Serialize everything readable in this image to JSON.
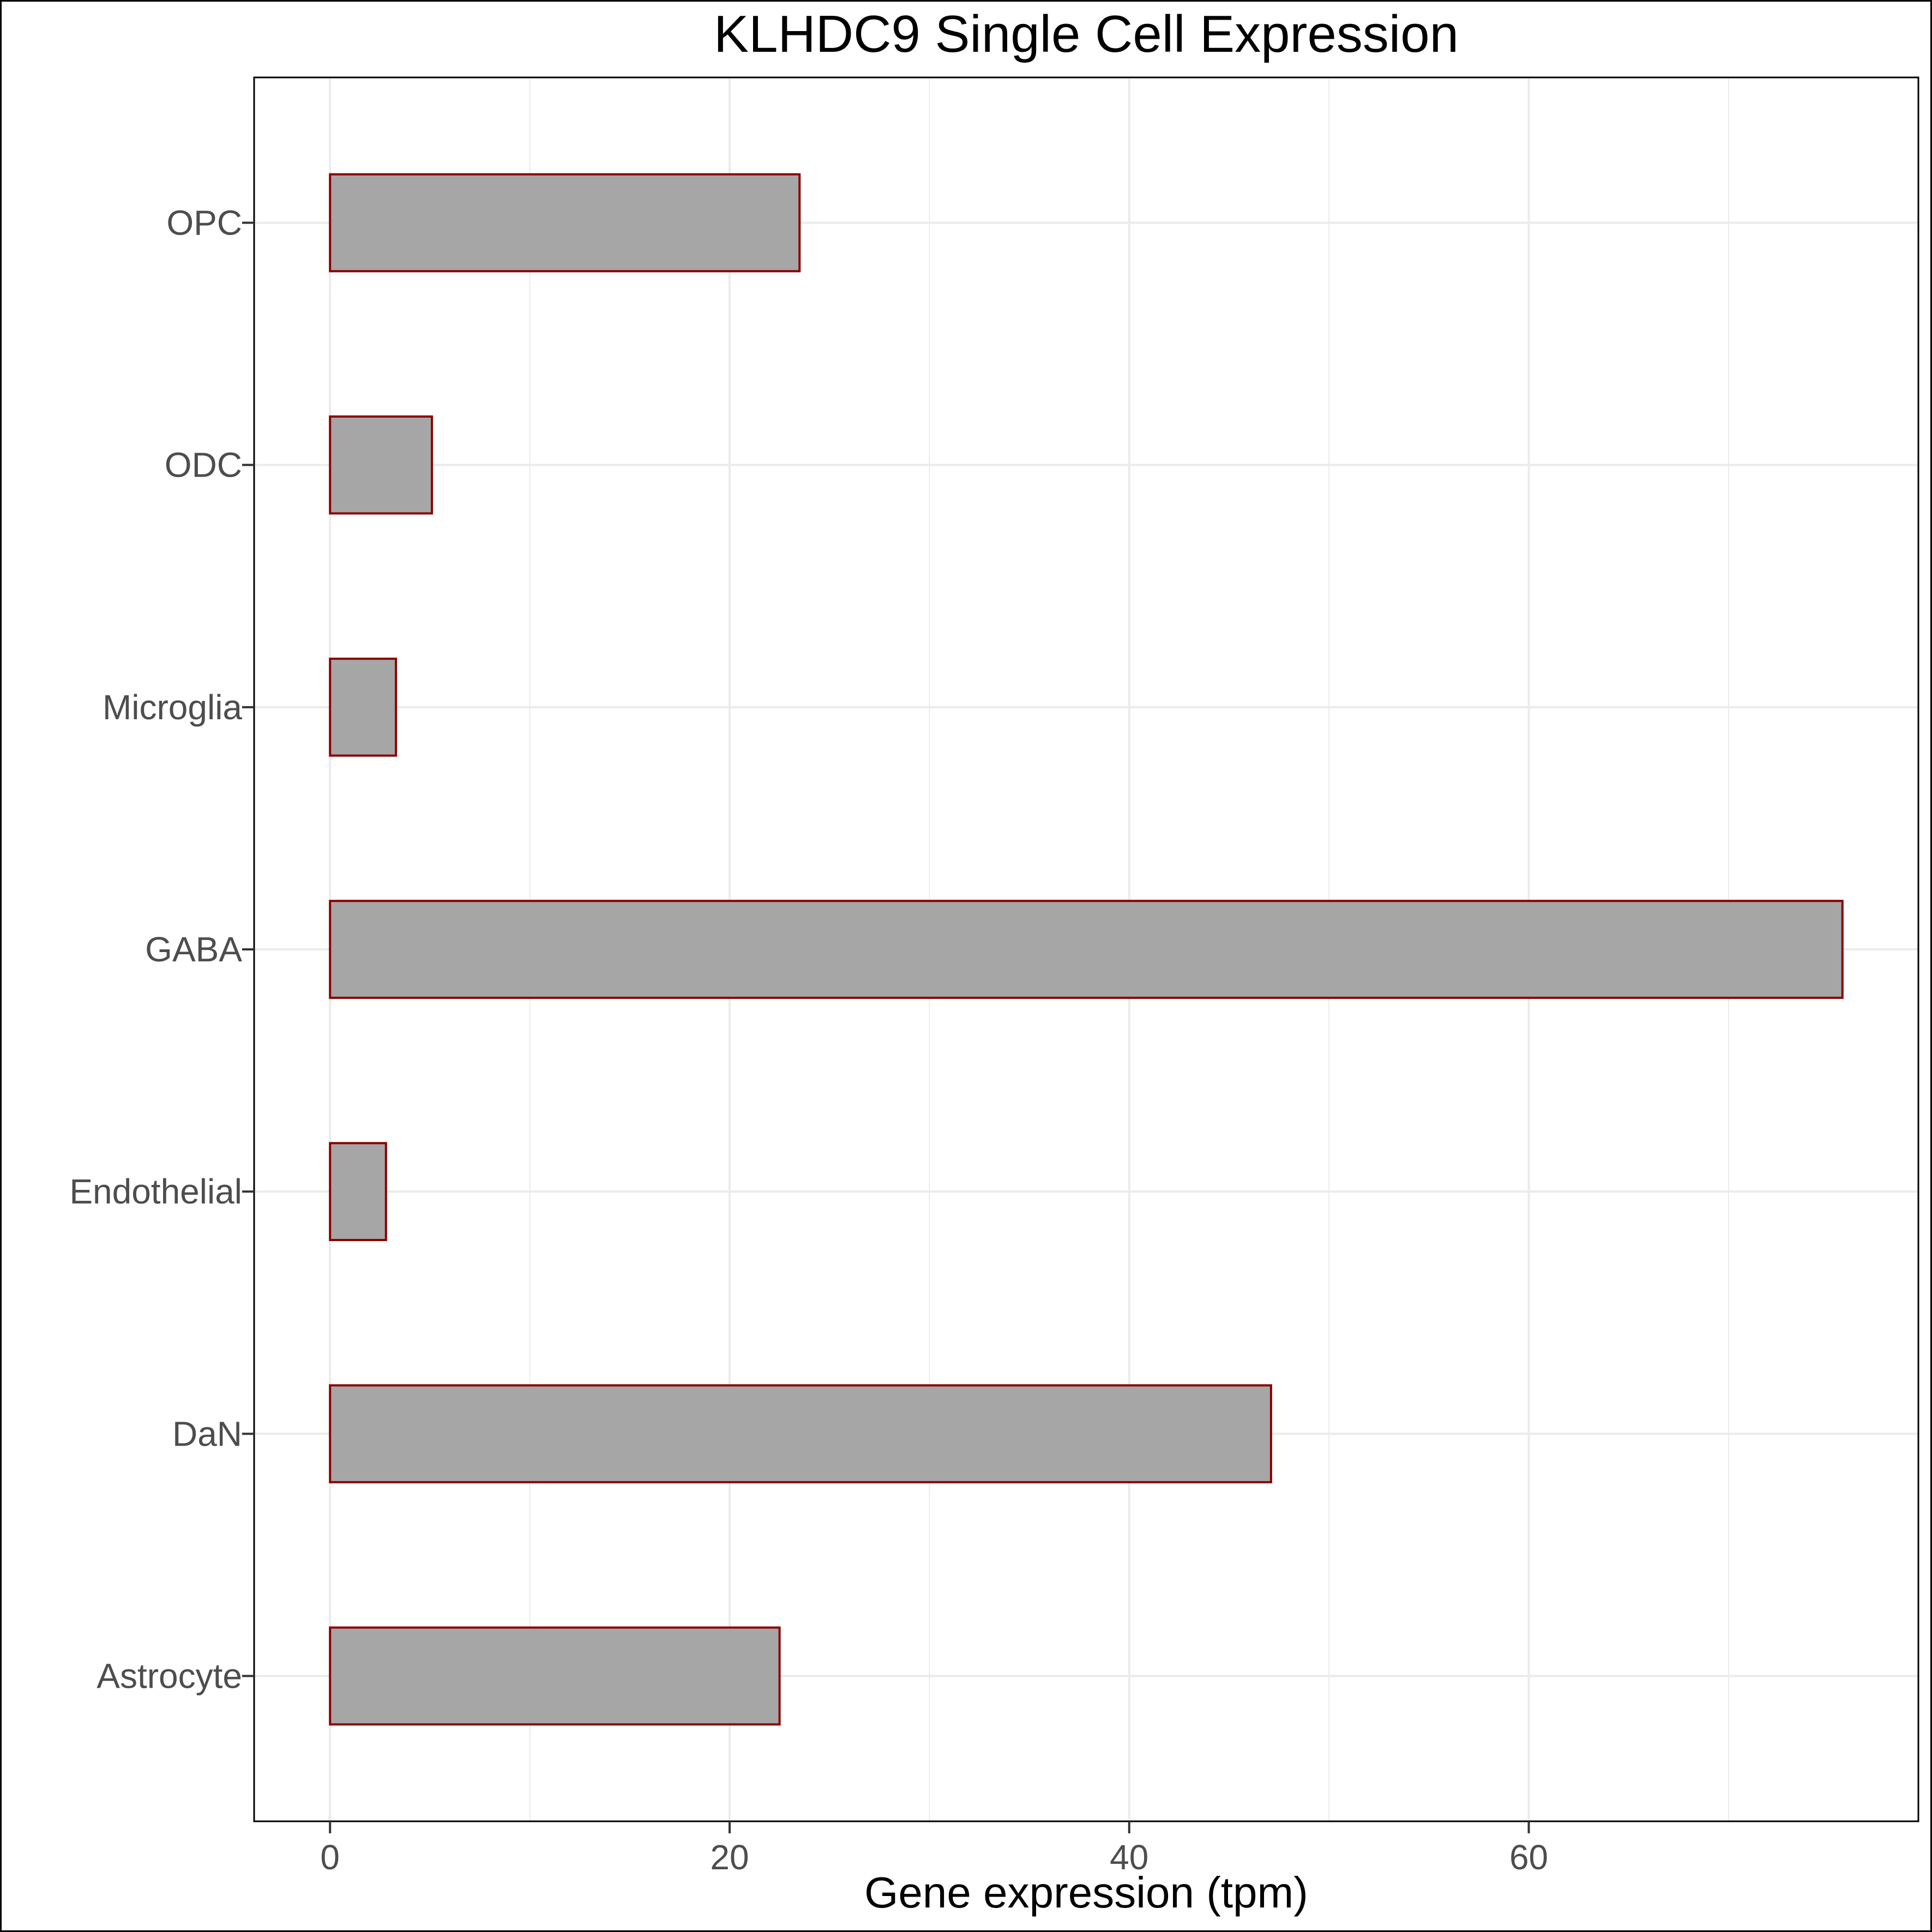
{
  "chart_data": {
    "type": "bar",
    "orientation": "horizontal",
    "title": "KLHDC9 Single Cell Expression",
    "xlabel": "Gene expression (tpm)",
    "ylabel": "",
    "categories": [
      "Astrocyte",
      "DaN",
      "Endothelial",
      "GABA",
      "Microglia",
      "ODC",
      "OPC"
    ],
    "values": [
      22.5,
      47.1,
      2.8,
      75.7,
      3.3,
      5.1,
      23.5
    ],
    "xlim": [
      -3.8,
      79.5
    ],
    "xticks": [
      0,
      20,
      40,
      60
    ],
    "xtick_labels": [
      "0",
      "20",
      "40",
      "60"
    ],
    "grid": true,
    "legend": "none",
    "colors": {
      "bar_fill": "#a6a6a6",
      "bar_stroke": "#8b0000",
      "grid": "#ebebeb",
      "panel_border": "#000000",
      "tick_text": "#4d4d4d"
    }
  }
}
